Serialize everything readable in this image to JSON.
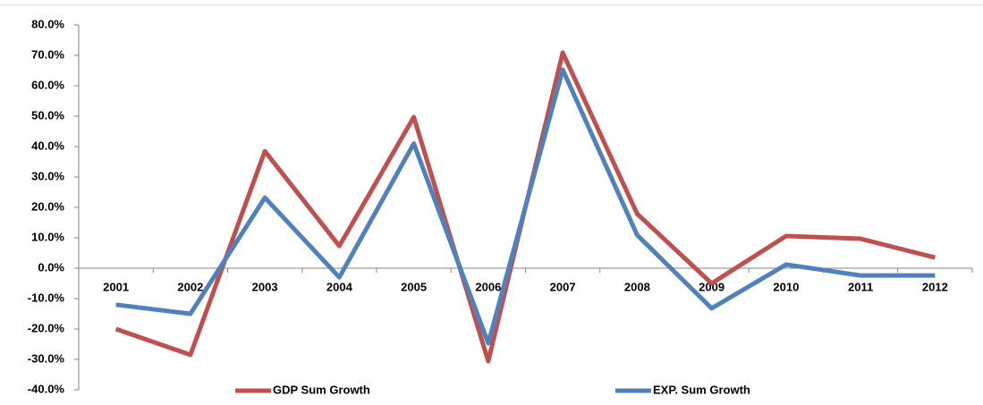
{
  "chart_data": {
    "type": "line",
    "categories": [
      "2001",
      "2002",
      "2003",
      "2004",
      "2005",
      "2006",
      "2007",
      "2008",
      "2009",
      "2010",
      "2011",
      "2012"
    ],
    "series": [
      {
        "name": "GDP Sum Growth",
        "color": "#c0504d",
        "values": [
          -20,
          -28.5,
          38.5,
          7.3,
          49.7,
          -30.6,
          70.9,
          17.9,
          -5,
          10.6,
          9.7,
          3.5
        ]
      },
      {
        "name": "EXP. Sum Growth",
        "color": "#4f81bd",
        "values": [
          -12,
          -15,
          23.2,
          -3,
          41,
          -24.7,
          65.3,
          10.9,
          -13.2,
          1.2,
          -2.4,
          -2.4
        ]
      }
    ],
    "ylim": [
      -40,
      80
    ],
    "yticks": [
      {
        "value": -40,
        "label": "-40.0%"
      },
      {
        "value": -30,
        "label": "-30.0%"
      },
      {
        "value": -20,
        "label": "-20.0%"
      },
      {
        "value": -10,
        "label": "-10.0%"
      },
      {
        "value": 0,
        "label": "0.0%"
      },
      {
        "value": 10,
        "label": "10.0%"
      },
      {
        "value": 20,
        "label": "20.0%"
      },
      {
        "value": 30,
        "label": "30.0%"
      },
      {
        "value": 40,
        "label": "40.0%"
      },
      {
        "value": 50,
        "label": "50.0%"
      },
      {
        "value": 60,
        "label": "60.0%"
      },
      {
        "value": 70,
        "label": "70.0%"
      },
      {
        "value": 80,
        "label": "80.0%"
      }
    ],
    "grid": false,
    "legend": "bottom"
  }
}
